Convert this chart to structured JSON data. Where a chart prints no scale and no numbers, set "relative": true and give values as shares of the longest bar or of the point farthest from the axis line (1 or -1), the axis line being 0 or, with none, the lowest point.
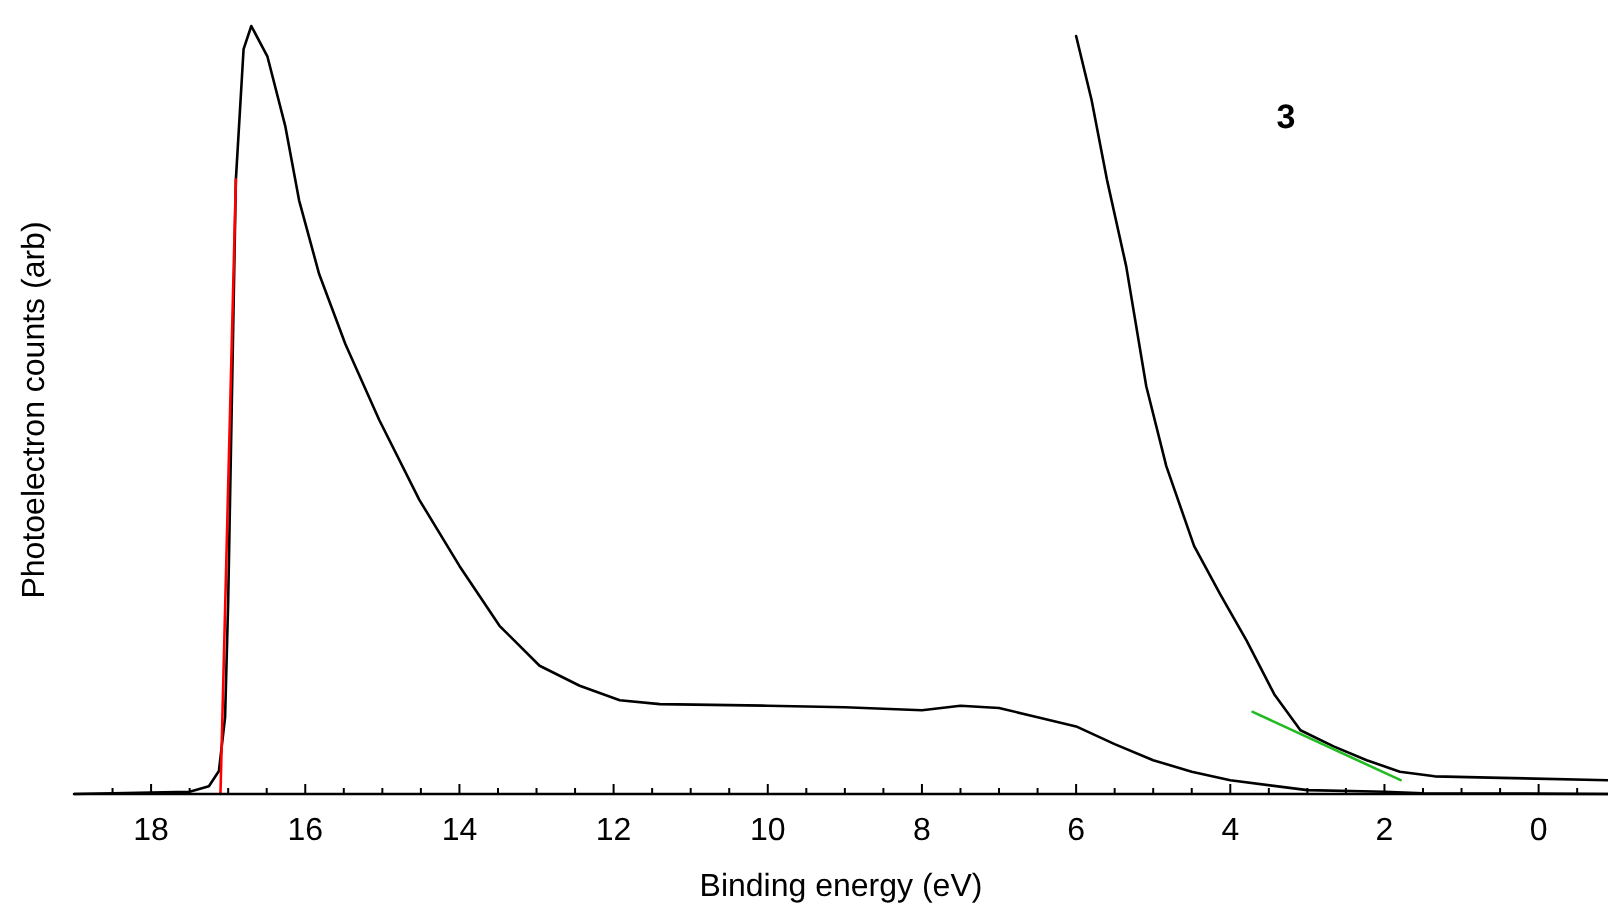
{
  "chart_data": {
    "type": "line",
    "xlabel": "Binding energy (eV)",
    "ylabel": "Photoelectron counts (arb)",
    "annotations": [
      "3"
    ],
    "relative": true,
    "tick_labels": "x",
    "marker": "none",
    "line_style": "solid",
    "xlim": [
      19,
      -0.9
    ],
    "xticks": [
      {
        "value": 18.5,
        "label": null
      },
      18,
      {
        "value": 17.5,
        "label": null
      },
      {
        "value": 17,
        "label": null
      },
      {
        "value": 16.5,
        "label": null
      },
      16,
      {
        "value": 15.5,
        "label": null
      },
      {
        "value": 15,
        "label": null
      },
      {
        "value": 14.5,
        "label": null
      },
      14,
      {
        "value": 13.5,
        "label": null
      },
      {
        "value": 13,
        "label": null
      },
      {
        "value": 12.5,
        "label": null
      },
      12,
      {
        "value": 11.5,
        "label": null
      },
      {
        "value": 11,
        "label": null
      },
      {
        "value": 10.5,
        "label": null
      },
      10,
      {
        "value": 9.5,
        "label": null
      },
      {
        "value": 9,
        "label": null
      },
      {
        "value": 8.5,
        "label": null
      },
      8,
      {
        "value": 7.5,
        "label": null
      },
      {
        "value": 7,
        "label": null
      },
      {
        "value": 6.5,
        "label": null
      },
      6,
      {
        "value": 5.5,
        "label": null
      },
      {
        "value": 5,
        "label": null
      },
      {
        "value": 4.5,
        "label": null
      },
      4,
      {
        "value": 3.5,
        "label": null
      },
      {
        "value": 3,
        "label": null
      },
      {
        "value": 2.5,
        "label": null
      },
      2,
      {
        "value": 1.5,
        "label": null
      },
      {
        "value": 1,
        "label": null
      },
      {
        "value": 0.5,
        "label": null
      },
      0,
      {
        "value": -0.5,
        "label": null
      }
    ],
    "series": [
      {
        "color": "#000000",
        "x": [
          19,
          17.5,
          17.25,
          17.12,
          17.04,
          17.0,
          16.9,
          16.8,
          16.7,
          16.49,
          16.26,
          16.08,
          15.82,
          15.48,
          15.04,
          14.52,
          14.0,
          13.48,
          12.96,
          12.44,
          11.92,
          11.4,
          10,
          9,
          8,
          7.5,
          7,
          6.5,
          6,
          5.5,
          5,
          4.5,
          4,
          3,
          2,
          1.5,
          -0.9
        ],
        "values": [
          0,
          0.003,
          0.01,
          0.03,
          0.1,
          0.25,
          0.8,
          0.97,
          1,
          0.96,
          0.87,
          0.773,
          0.677,
          0.586,
          0.487,
          0.383,
          0.297,
          0.219,
          0.167,
          0.141,
          0.122,
          0.117,
          0.115,
          0.113,
          0.109,
          0.115,
          0.112,
          0.1,
          0.088,
          0.065,
          0.044,
          0.029,
          0.018,
          0.005,
          0.003,
          0.001,
          0
        ]
      },
      {
        "color": "#000000",
        "x": [
          6.0,
          5.8,
          5.6,
          5.35,
          5.09,
          4.83,
          4.47,
          4.13,
          3.79,
          3.43,
          3.09,
          2.66,
          2.23,
          1.8,
          1.35,
          0.49,
          -0.9
        ],
        "values": [
          0.987,
          0.904,
          0.8,
          0.687,
          0.531,
          0.427,
          0.323,
          0.26,
          0.2,
          0.13,
          0.083,
          0.062,
          0.044,
          0.029,
          0.023,
          0.021,
          0.018
        ]
      },
      {
        "color": "#ff0000",
        "x": [
          17.1,
          16.9
        ],
        "values": [
          0,
          0.8
        ]
      },
      {
        "color": "#22bb22",
        "x": [
          3.71,
          1.79
        ],
        "values": [
          0.107,
          0.018
        ]
      }
    ]
  }
}
